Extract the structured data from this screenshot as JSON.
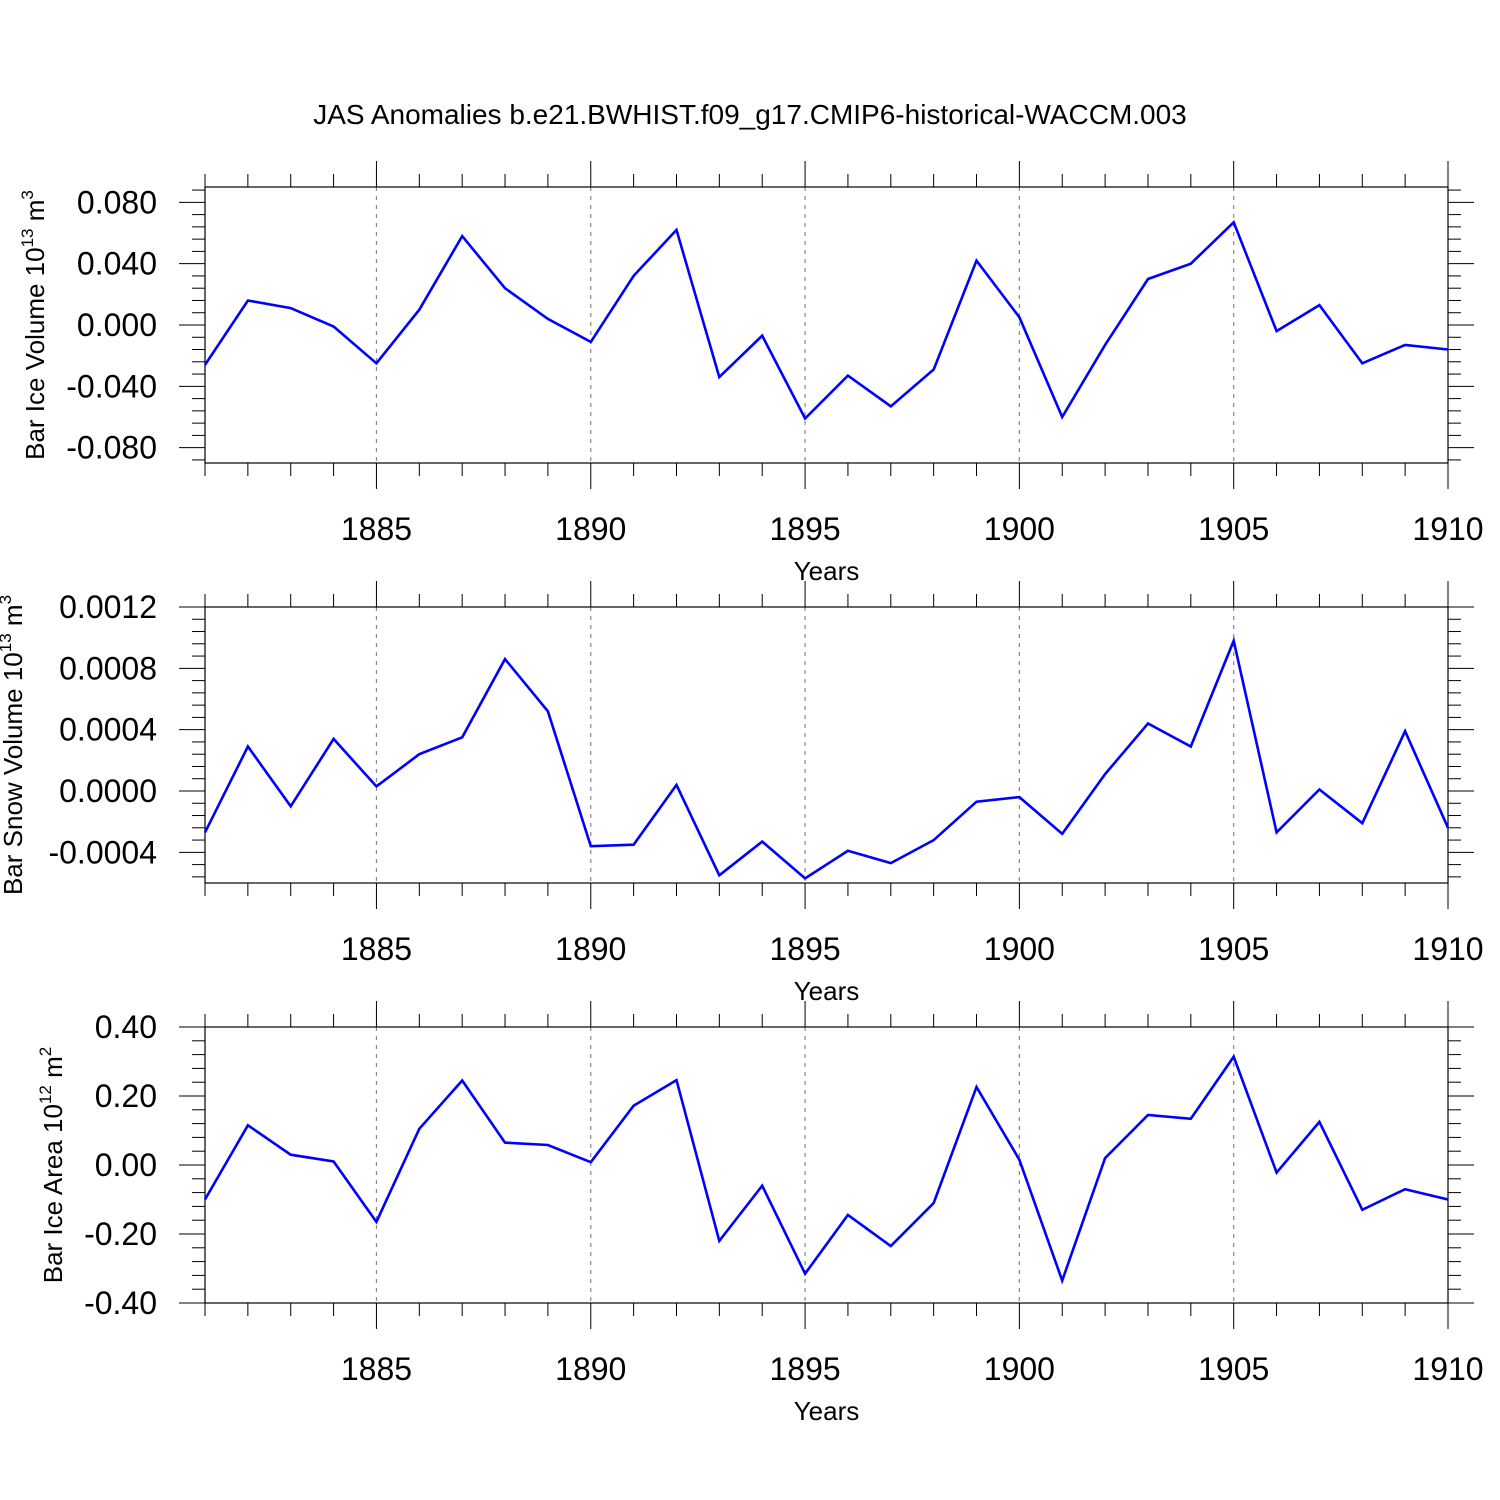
{
  "figure": {
    "title": "JAS Anomalies b.e21.BWHIST.f09_g17.CMIP6-historical-WACCM.003",
    "line_color": "#0000ff",
    "grid_color": "#888888"
  },
  "chart_data": [
    {
      "type": "line",
      "title": "",
      "xlabel": "Years",
      "ylabel": {
        "text": "Bar Ice Volume 10",
        "exp": "13",
        "unit": " m",
        "unit_exp": "3"
      },
      "xlim": [
        1881,
        1910
      ],
      "ylim": [
        -0.09,
        0.09
      ],
      "x_ticks": [
        1885,
        1890,
        1895,
        1900,
        1905,
        1910
      ],
      "y_ticks": [
        -0.08,
        -0.04,
        0.0,
        0.04,
        0.08
      ],
      "y_tick_labels": [
        "-0.080",
        "-0.040",
        "0.000",
        "0.040",
        "0.080"
      ],
      "x": [
        1881,
        1882,
        1883,
        1884,
        1885,
        1886,
        1887,
        1888,
        1889,
        1890,
        1891,
        1892,
        1893,
        1894,
        1895,
        1896,
        1897,
        1898,
        1899,
        1900,
        1901,
        1902,
        1903,
        1904,
        1905,
        1906,
        1907,
        1908,
        1909,
        1910
      ],
      "values": [
        -0.026,
        0.016,
        0.011,
        -0.001,
        -0.025,
        0.01,
        0.058,
        0.024,
        0.004,
        -0.011,
        0.032,
        0.062,
        -0.034,
        -0.007,
        -0.061,
        -0.033,
        -0.053,
        -0.029,
        0.042,
        0.005,
        -0.06,
        -0.013,
        0.03,
        0.04,
        0.067,
        -0.004,
        0.013,
        -0.025,
        -0.013,
        -0.016
      ],
      "grid": "vertical dashed at major x ticks"
    },
    {
      "type": "line",
      "title": "",
      "xlabel": "Years",
      "ylabel": {
        "text": "Bar Snow Volume 10",
        "exp": "13",
        "unit": " m",
        "unit_exp": "3"
      },
      "xlim": [
        1881,
        1910
      ],
      "ylim": [
        -0.0006,
        0.0012
      ],
      "x_ticks": [
        1885,
        1890,
        1895,
        1900,
        1905,
        1910
      ],
      "y_ticks": [
        -0.0004,
        0.0,
        0.0004,
        0.0008,
        0.0012
      ],
      "y_tick_labels": [
        "-0.0004",
        "0.0000",
        "0.0004",
        "0.0008",
        "0.0012"
      ],
      "x": [
        1881,
        1882,
        1883,
        1884,
        1885,
        1886,
        1887,
        1888,
        1889,
        1890,
        1891,
        1892,
        1893,
        1894,
        1895,
        1896,
        1897,
        1898,
        1899,
        1900,
        1901,
        1902,
        1903,
        1904,
        1905,
        1906,
        1907,
        1908,
        1909,
        1910
      ],
      "values": [
        -0.00027,
        0.00029,
        -0.0001,
        0.00034,
        3e-05,
        0.00024,
        0.00035,
        0.00086,
        0.00052,
        -0.00036,
        -0.00035,
        4e-05,
        -0.00055,
        -0.00033,
        -0.00057,
        -0.00039,
        -0.00047,
        -0.00032,
        -7e-05,
        -4e-05,
        -0.00028,
        0.00011,
        0.00044,
        0.00029,
        0.00098,
        -0.00027,
        1e-05,
        -0.00021,
        0.00039,
        -0.00024
      ],
      "grid": "vertical dashed at major x ticks"
    },
    {
      "type": "line",
      "title": "",
      "xlabel": "Years",
      "ylabel": {
        "text": "Bar Ice Area 10",
        "exp": "12",
        "unit": " m",
        "unit_exp": "2"
      },
      "xlim": [
        1881,
        1910
      ],
      "ylim": [
        -0.4,
        0.4
      ],
      "x_ticks": [
        1885,
        1890,
        1895,
        1900,
        1905,
        1910
      ],
      "y_ticks": [
        -0.4,
        -0.2,
        0.0,
        0.2,
        0.4
      ],
      "y_tick_labels": [
        "-0.40",
        "-0.20",
        "0.00",
        "0.20",
        "0.40"
      ],
      "x": [
        1881,
        1882,
        1883,
        1884,
        1885,
        1886,
        1887,
        1888,
        1889,
        1890,
        1891,
        1892,
        1893,
        1894,
        1895,
        1896,
        1897,
        1898,
        1899,
        1900,
        1901,
        1902,
        1903,
        1904,
        1905,
        1906,
        1907,
        1908,
        1909,
        1910
      ],
      "values": [
        -0.1,
        0.115,
        0.03,
        0.01,
        -0.165,
        0.105,
        0.245,
        0.065,
        0.058,
        0.008,
        0.172,
        0.246,
        -0.22,
        -0.06,
        -0.315,
        -0.145,
        -0.235,
        -0.11,
        0.226,
        0.015,
        -0.335,
        0.02,
        0.145,
        0.134,
        0.314,
        -0.022,
        0.125,
        -0.13,
        -0.07,
        -0.1
      ],
      "grid": "vertical dashed at major x ticks"
    }
  ]
}
